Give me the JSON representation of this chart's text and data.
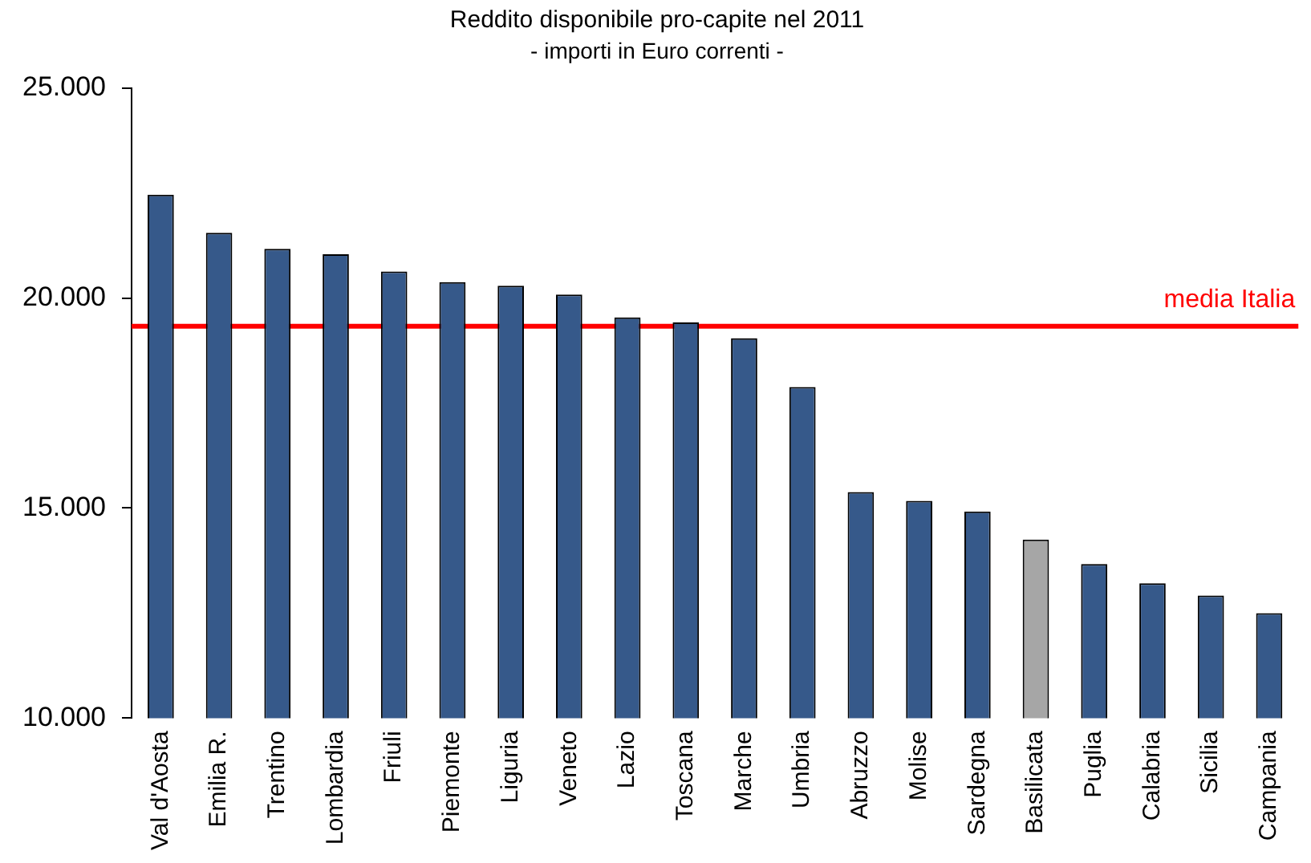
{
  "chart_data": {
    "type": "bar",
    "title": "Reddito disponibile pro-capite nel 2011",
    "subtitle": "- importi in Euro correnti -",
    "categories": [
      "Val d'Aosta",
      "Emilia R.",
      "Trentino",
      "Lombardia",
      "Friuli",
      "Piemonte",
      "Liguria",
      "Veneto",
      "Lazio",
      "Toscana",
      "Marche",
      "Umbria",
      "Abruzzo",
      "Molise",
      "Sardegna",
      "Basilicata",
      "Puglia",
      "Calabria",
      "Sicilia",
      "Campania"
    ],
    "values": [
      22460,
      21550,
      21170,
      21040,
      20630,
      20380,
      20290,
      20080,
      19540,
      19420,
      19040,
      17880,
      15380,
      15170,
      14920,
      14250,
      13670,
      13210,
      12920,
      12500
    ],
    "colors": [
      "#36598a",
      "#36598a",
      "#36598a",
      "#36598a",
      "#36598a",
      "#36598a",
      "#36598a",
      "#36598a",
      "#36598a",
      "#36598a",
      "#36598a",
      "#36598a",
      "#36598a",
      "#36598a",
      "#36598a",
      "#a6a6a6",
      "#36598a",
      "#36598a",
      "#36598a",
      "#36598a"
    ],
    "ylim": [
      10000,
      25000
    ],
    "yticks": [
      {
        "value": 10000,
        "label": "10.000"
      },
      {
        "value": 15000,
        "label": "15.000"
      },
      {
        "value": 20000,
        "label": "20.000"
      },
      {
        "value": 25000,
        "label": "25.000"
      }
    ],
    "grid": false,
    "legend": false,
    "ref_lines": [
      {
        "axis": "y",
        "value": 19330,
        "label": "media Italia",
        "color": "#ff0000"
      }
    ]
  }
}
